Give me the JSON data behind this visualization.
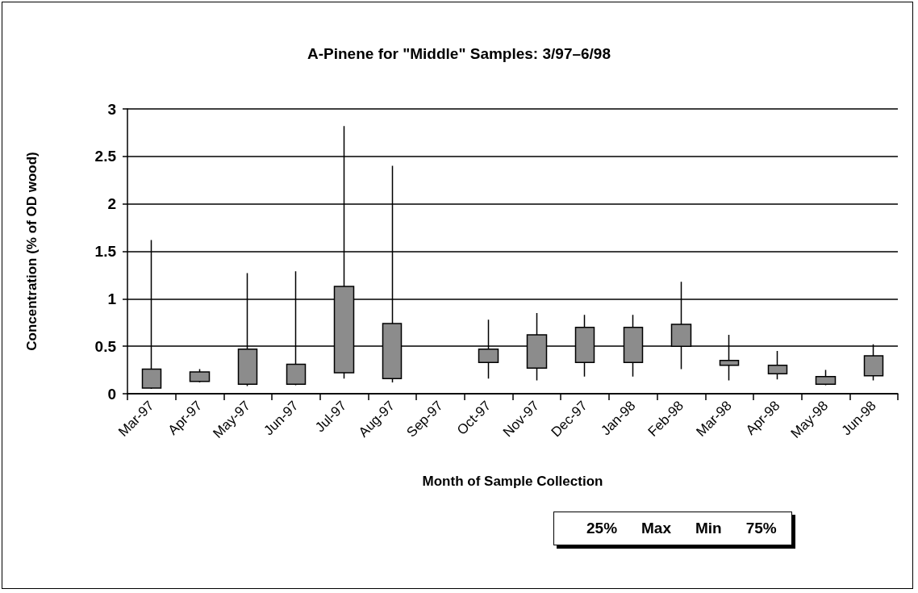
{
  "chart_data": {
    "type": "candlestick",
    "title": "A-Pinene for \"Middle\" Samples: 3/97–6/98",
    "xlabel": "Month of Sample Collection",
    "ylabel": "Concentration (% of OD wood)",
    "categories": [
      "Mar-97",
      "Apr-97",
      "May-97",
      "Jun-97",
      "Jul-97",
      "Aug-97",
      "Sep-97",
      "Oct-97",
      "Nov-97",
      "Dec-97",
      "Jan-98",
      "Feb-98",
      "Mar-98",
      "Apr-98",
      "May-98",
      "Jun-98"
    ],
    "ohlc": [
      [
        0.06,
        1.62,
        0.05,
        0.26
      ],
      [
        0.13,
        0.26,
        0.12,
        0.23
      ],
      [
        0.1,
        1.27,
        0.08,
        0.47
      ],
      [
        0.1,
        1.29,
        0.09,
        0.31
      ],
      [
        0.22,
        2.82,
        0.16,
        1.13
      ],
      [
        0.16,
        2.4,
        0.12,
        0.74
      ],
      null,
      [
        0.33,
        0.78,
        0.16,
        0.47
      ],
      [
        0.27,
        0.85,
        0.14,
        0.62
      ],
      [
        0.33,
        0.83,
        0.18,
        0.7
      ],
      [
        0.33,
        0.83,
        0.18,
        0.7
      ],
      [
        0.5,
        1.18,
        0.26,
        0.73
      ],
      [
        0.3,
        0.62,
        0.14,
        0.35
      ],
      [
        0.21,
        0.45,
        0.15,
        0.3
      ],
      [
        0.1,
        0.25,
        0.09,
        0.18
      ],
      [
        0.19,
        0.52,
        0.14,
        0.4
      ]
    ],
    "color": "#8c8c8c",
    "ylim": [
      0,
      3
    ],
    "yticks": [
      0,
      0.5,
      1,
      1.5,
      2,
      2.5,
      3
    ],
    "grid": "y",
    "annotations": [
      "25%",
      "Max",
      "Min",
      "75%"
    ]
  }
}
